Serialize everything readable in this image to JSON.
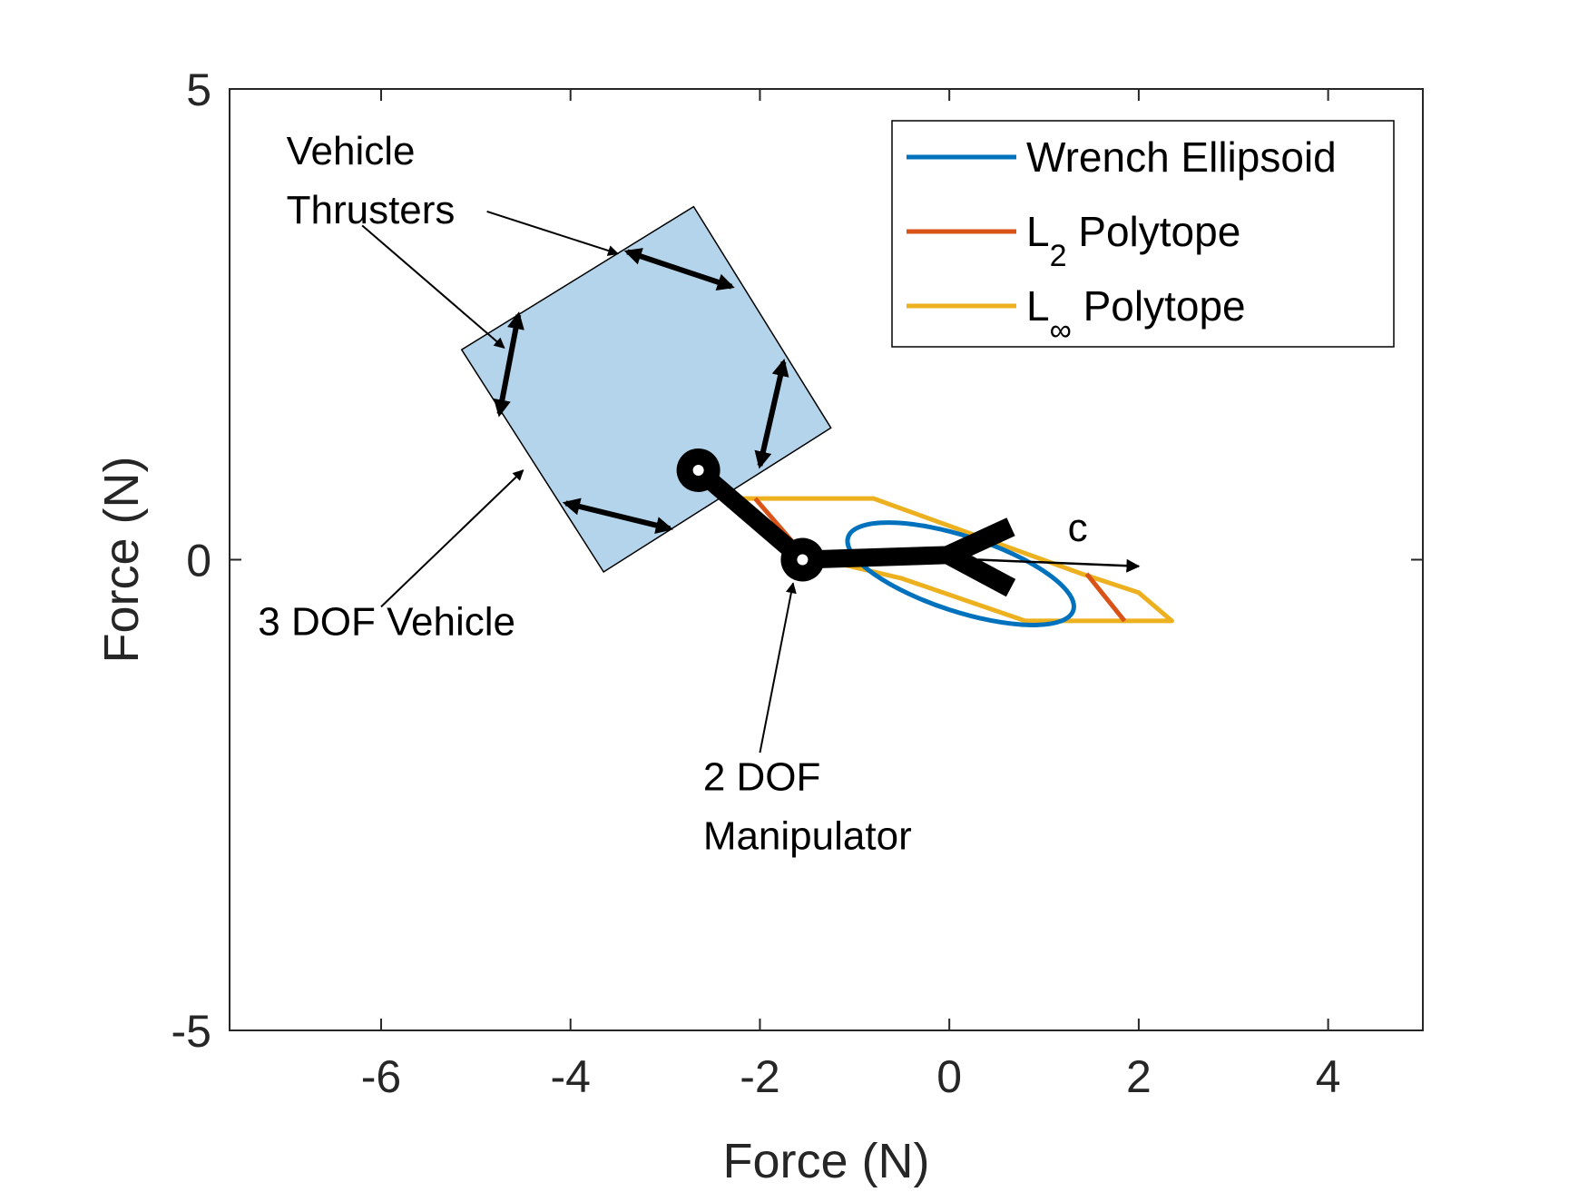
{
  "chart_data": {
    "type": "line",
    "xlabel": "Force (N)",
    "ylabel": "Force (N)",
    "xlim": [
      -7.6,
      5.0
    ],
    "ylim": [
      -5,
      5
    ],
    "x_ticks": [
      -6,
      -4,
      -2,
      0,
      2,
      4
    ],
    "y_ticks": [
      -5,
      0,
      5
    ],
    "x_tick_labels": [
      "-6",
      "-4",
      "-2",
      "0",
      "2",
      "4"
    ],
    "y_tick_labels": [
      "-5",
      "0",
      "5"
    ],
    "grid": false,
    "legend_position": "top-right",
    "colors": {
      "ellipsoid": "#0072BD",
      "l2": "#D95319",
      "linf": "#EDB120",
      "vehicle_fill": "#b3d4ea",
      "ink": "#000000"
    },
    "series": [
      {
        "name": "Wrench Ellipsoid",
        "color": "#0072BD",
        "shape": "ellipse",
        "center": [
          0.12,
          -0.15
        ],
        "semi_axes": [
          1.25,
          0.4
        ],
        "angle_deg": -18
      },
      {
        "name": "L2 Polytope",
        "color": "#D95319",
        "segments": [
          [
            [
              -2.05,
              0.65
            ],
            [
              -1.45,
              -0.05
            ]
          ],
          [
            [
              1.45,
              -0.15
            ],
            [
              1.85,
              -0.65
            ]
          ]
        ]
      },
      {
        "name": "L∞ Polytope",
        "color": "#EDB120",
        "x": [
          -2.35,
          -0.8,
          1.4,
          2.0,
          2.35,
          0.8,
          -0.5,
          -1.55,
          -2.35
        ],
        "y": [
          0.65,
          0.65,
          -0.15,
          -0.35,
          -0.65,
          -0.65,
          -0.2,
          0.05,
          0.65
        ]
      }
    ],
    "legend": [
      {
        "label": "Wrench Ellipsoid",
        "base": "Wrench Ellipsoid",
        "sub": "",
        "suffix": ""
      },
      {
        "label": "L2 Polytope",
        "base": "L",
        "sub": "2",
        "suffix": " Polytope"
      },
      {
        "label": "L∞ Polytope",
        "base": "L",
        "sub": "∞",
        "suffix": " Polytope"
      }
    ],
    "vehicle": {
      "corners": [
        [
          -2.7,
          3.75
        ],
        [
          -1.25,
          1.4
        ],
        [
          -3.65,
          -0.13
        ],
        [
          -5.15,
          2.23
        ]
      ]
    },
    "thrusters": [
      [
        [
          -3.4,
          3.27
        ],
        [
          -2.3,
          2.9
        ]
      ],
      [
        [
          -4.55,
          2.6
        ],
        [
          -4.75,
          1.55
        ]
      ],
      [
        [
          -1.75,
          2.1
        ],
        [
          -2.0,
          1.0
        ]
      ],
      [
        [
          -4.05,
          0.6
        ],
        [
          -2.95,
          0.33
        ]
      ]
    ],
    "manipulator": {
      "base_joint": [
        -2.65,
        0.95
      ],
      "elbow_joint": [
        -1.55,
        0.0
      ],
      "tool_center": [
        0.0,
        0.05
      ],
      "tool_prongs": [
        [
          [
            0.0,
            0.05
          ],
          [
            0.65,
            0.35
          ]
        ],
        [
          [
            0.0,
            0.05
          ],
          [
            0.65,
            -0.3
          ]
        ]
      ]
    },
    "c_vector": {
      "from": [
        0.3,
        0.0
      ],
      "to": [
        2.0,
        -0.07
      ],
      "label": "c"
    },
    "annotations": [
      {
        "lines": [
          "Vehicle",
          "Thrusters"
        ],
        "at": [
          -7.0,
          4.2
        ],
        "arrows_to": [
          [
            -3.5,
            3.25
          ],
          [
            -4.7,
            2.25
          ]
        ]
      },
      {
        "lines": [
          "3 DOF Vehicle"
        ],
        "at": [
          -7.3,
          -0.8
        ],
        "arrow_from": [
          -6.0,
          -0.5
        ],
        "arrow_to": [
          -4.5,
          0.95
        ]
      },
      {
        "lines": [
          "2 DOF",
          "Manipulator"
        ],
        "at": [
          -2.6,
          -2.45
        ],
        "arrow_from": [
          -2.0,
          -2.05
        ],
        "arrow_to": [
          -1.65,
          -0.25
        ]
      }
    ]
  }
}
